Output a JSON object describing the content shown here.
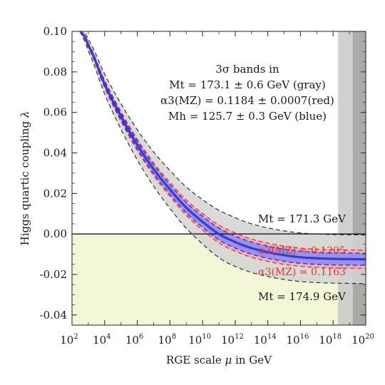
{
  "chart_data": {
    "type": "line",
    "title": "",
    "xlabel": "RGE scale μ in GeV",
    "ylabel": "Higgs quartic coupling λ",
    "xscale": "log10",
    "xlim_log10": [
      2,
      20
    ],
    "ylim": [
      -0.045,
      0.1
    ],
    "x_ticks": [
      {
        "exp": 2,
        "base": "10",
        "sup": "2"
      },
      {
        "exp": 4,
        "base": "10",
        "sup": "4"
      },
      {
        "exp": 6,
        "base": "10",
        "sup": "6"
      },
      {
        "exp": 8,
        "base": "10",
        "sup": "8"
      },
      {
        "exp": 10,
        "base": "10",
        "sup": "10"
      },
      {
        "exp": 12,
        "base": "10",
        "sup": "12"
      },
      {
        "exp": 14,
        "base": "10",
        "sup": "14"
      },
      {
        "exp": 16,
        "base": "10",
        "sup": "16"
      },
      {
        "exp": 18,
        "base": "10",
        "sup": "18"
      },
      {
        "exp": 20,
        "base": "10",
        "sup": "20"
      }
    ],
    "y_ticks": [
      {
        "v": 0.1,
        "label": "0.10"
      },
      {
        "v": 0.08,
        "label": "0.08"
      },
      {
        "v": 0.06,
        "label": "0.06"
      },
      {
        "v": 0.04,
        "label": "0.04"
      },
      {
        "v": 0.02,
        "label": "0.02"
      },
      {
        "v": 0.0,
        "label": "0.00"
      },
      {
        "v": -0.02,
        "label": "-0.02"
      },
      {
        "v": -0.04,
        "label": "-0.04"
      }
    ],
    "central_curve": {
      "log10_mu": [
        2.5,
        3,
        4,
        5,
        6,
        7,
        8,
        9,
        10,
        11,
        12,
        13,
        14,
        15,
        16,
        17,
        18,
        19,
        20
      ],
      "lambda": [
        0.1,
        0.093,
        0.074,
        0.058,
        0.044,
        0.032,
        0.022,
        0.013,
        0.006,
        0.0,
        -0.004,
        -0.007,
        -0.009,
        -0.0105,
        -0.0115,
        -0.012,
        -0.0123,
        -0.0124,
        -0.0125
      ]
    },
    "offsets": {
      "blue_band": 0.003,
      "alpha_lines": 0.0045,
      "gray_band": 0.012
    },
    "bands": [
      {
        "name": "gray",
        "color": "#d4d4d4"
      },
      {
        "name": "red",
        "color": "#f7a7ac"
      },
      {
        "name": "blue",
        "color": "#8f8ff0"
      }
    ],
    "curve_color": "#3a3ad0",
    "negative_region_color": "#f3f7d8",
    "planck_band_log10": [
      18.3,
      19.2,
      20
    ],
    "annotations": {
      "heading": "3σ bands in",
      "mt_line": "Mt = 173.1 ± 0.6 GeV (gray)",
      "alpha_line": "α3(MZ) = 0.1184 ± 0.0007(red)",
      "mh_line": "Mh = 125.7 ± 0.3 GeV (blue)",
      "mt_upper": "Mt = 171.3 GeV",
      "alpha_upper": "α3(MZ) = 0.1205",
      "alpha_lower": "α3(MZ) = 0.1163",
      "mt_lower": "Mt = 174.9 GeV"
    }
  }
}
